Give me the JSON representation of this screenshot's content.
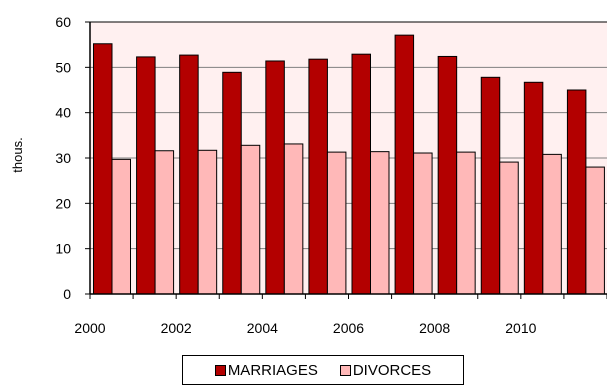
{
  "chart_data": {
    "type": "bar",
    "ylabel": "thous.",
    "ylim": [
      0,
      60
    ],
    "yticks": [
      0,
      10,
      20,
      30,
      40,
      50,
      60
    ],
    "grid": true,
    "legend_position": "bottom",
    "categories": [
      "2000",
      "2001",
      "2002",
      "2003",
      "2004",
      "2005",
      "2006",
      "2007",
      "2008",
      "2009",
      "2010",
      "2011"
    ],
    "x_tick_labels": [
      "2000",
      "",
      "2002",
      "",
      "2004",
      "",
      "2006",
      "",
      "2008",
      "",
      "2010",
      ""
    ],
    "series": [
      {
        "name": "MARRIAGES",
        "color": "#b30000",
        "values": [
          55.2,
          52.3,
          52.7,
          48.9,
          51.4,
          51.8,
          52.9,
          57.1,
          52.4,
          47.8,
          46.7,
          45.0
        ]
      },
      {
        "name": "DIVORCES",
        "color": "#ffb8b8",
        "values": [
          29.7,
          31.6,
          31.7,
          32.8,
          33.1,
          31.3,
          31.4,
          31.1,
          31.3,
          29.1,
          30.8,
          28.0
        ]
      }
    ],
    "plot_background": "#fff0f0"
  },
  "legend": {
    "items": [
      {
        "label": "MARRIAGES",
        "color": "#b30000"
      },
      {
        "label": "DIVORCES",
        "color": "#ffb8b8"
      }
    ]
  }
}
